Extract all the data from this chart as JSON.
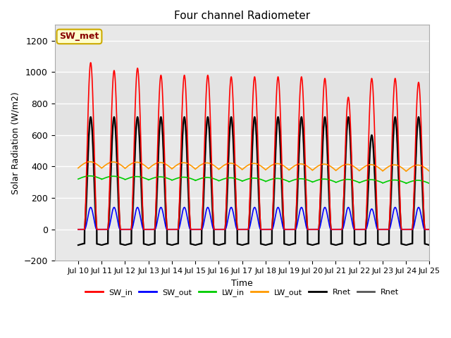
{
  "title": "Four channel Radiometer",
  "xlabel": "Time",
  "ylabel": "Solar Radiation (W/m2)",
  "ylim": [
    -200,
    1300
  ],
  "xlim_days": [
    9.0,
    25.0
  ],
  "yticks": [
    -200,
    0,
    200,
    400,
    600,
    800,
    1000,
    1200
  ],
  "xtick_days": [
    10,
    11,
    12,
    13,
    14,
    15,
    16,
    17,
    18,
    19,
    20,
    21,
    22,
    23,
    24,
    25
  ],
  "xtick_labels": [
    "Jul 10",
    "Jul 11",
    "Jul 12",
    "Jul 13",
    "Jul 14",
    "Jul 15",
    "Jul 16",
    "Jul 17",
    "Jul 18",
    "Jul 19",
    "Jul 20",
    "Jul 21",
    "Jul 22",
    "Jul 23",
    "Jul 24",
    "Jul 25"
  ],
  "colors": {
    "SW_in": "#ff0000",
    "SW_out": "#0000ff",
    "LW_in": "#00cc00",
    "LW_out": "#ff9900",
    "Rnet_black": "#000000",
    "Rnet_dark": "#555555"
  },
  "bg_outer": "#e8e8e8",
  "bg_inner": "#d8d8d8",
  "plot_bg": "#ffffff",
  "annotation_text": "SW_met",
  "annotation_bg": "#ffffcc",
  "annotation_border": "#ccaa00",
  "start_day": 10,
  "end_day": 25.0,
  "dt": 0.002,
  "sw_in_peaks": [
    1060,
    1010,
    1025,
    980,
    980,
    980,
    970,
    970,
    970,
    970,
    960,
    840,
    960,
    960,
    935
  ],
  "sw_out_peak": 140,
  "lw_in_base": 320,
  "lw_in_amp": 20,
  "lw_out_base": 390,
  "lw_out_amp": 40,
  "rnet_peak": 715,
  "rnet_night": -100,
  "sunrise": 0.27,
  "sunset": 0.8
}
